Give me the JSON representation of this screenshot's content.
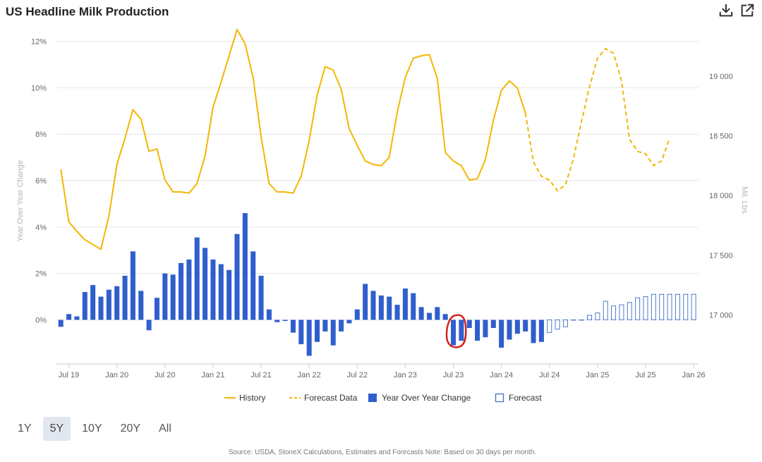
{
  "header": {
    "title": "US Headline Milk Production",
    "download_icon": "download-icon",
    "external_icon": "external-link-icon"
  },
  "range_selector": {
    "options": [
      "1Y",
      "5Y",
      "10Y",
      "20Y",
      "All"
    ],
    "active": "5Y"
  },
  "source_note": "Source: USDA, StoneX Calculations, Estimates and Forecasts  Note: Based on 30 days per month.",
  "chart_data": {
    "type": "line+bar",
    "left_axis": {
      "label": "Year Over Year Change",
      "range": [
        -1.9,
        12.2
      ],
      "ticks": [
        0,
        2,
        4,
        6,
        8,
        10,
        12
      ],
      "tick_labels": [
        "0%",
        "2%",
        "4%",
        "6%",
        "8%",
        "10%",
        "12%"
      ]
    },
    "right_axis": {
      "label": "Mil. Lbs.",
      "range": [
        16590,
        19330
      ],
      "ticks": [
        17000,
        17500,
        18000,
        18500,
        19000
      ],
      "tick_labels": [
        "17 000",
        "17 500",
        "18 000",
        "18 500",
        "19 000"
      ]
    },
    "x_axis": {
      "start": "2019-06",
      "tick_months": [
        "2019-07",
        "2020-01",
        "2020-07",
        "2021-01",
        "2021-07",
        "2022-01",
        "2022-07",
        "2023-01",
        "2023-07",
        "2024-01",
        "2024-07",
        "2025-01",
        "2025-07",
        "2026-01"
      ],
      "tick_labels": [
        "Jul 19",
        "Jan 20",
        "Jul 20",
        "Jan 21",
        "Jul 21",
        "Jan 22",
        "Jul 22",
        "Jan 23",
        "Jul 23",
        "Jan 24",
        "Jul 24",
        "Jan 25",
        "Jul 25",
        "Jan 26"
      ]
    },
    "grid": true,
    "legend": {
      "placement": "bottom-center",
      "items": [
        {
          "name": "History",
          "symbol": "line",
          "color": "#f2b705"
        },
        {
          "name": "Forecast Data",
          "symbol": "dashed-line",
          "color": "#f2b705"
        },
        {
          "name": "Year Over Year Change",
          "symbol": "filled-box",
          "color": "#2f5fcc"
        },
        {
          "name": "Forecast",
          "symbol": "open-box",
          "color": "#4f79c7"
        }
      ]
    },
    "history_mil_lbs": [
      18220,
      17780,
      17700,
      17630,
      17590,
      17550,
      17830,
      18260,
      18480,
      18720,
      18640,
      18370,
      18390,
      18130,
      18030,
      18030,
      18020,
      18100,
      18330,
      18740,
      18950,
      19170,
      19390,
      19270,
      18990,
      18490,
      18100,
      18030,
      18030,
      18020,
      18160,
      18460,
      18840,
      19080,
      19050,
      18890,
      18560,
      18420,
      18290,
      18260,
      18250,
      18320,
      18700,
      18990,
      19150,
      19170,
      19180,
      18980,
      18360,
      18290,
      18250,
      18130,
      18140,
      18300,
      18630,
      18880,
      18960,
      18900,
      18690
    ],
    "forecast_mil_lbs": [
      18690,
      18280,
      18160,
      18130,
      18040,
      18090,
      18310,
      18620,
      18910,
      19150,
      19230,
      19190,
      18960,
      18470,
      18370,
      18350,
      18250,
      18290,
      18480
    ],
    "yoy_change_pct": [
      -0.3,
      0.25,
      0.15,
      1.2,
      1.5,
      1.0,
      1.3,
      1.45,
      1.9,
      2.95,
      1.25,
      -0.45,
      0.95,
      2.0,
      1.95,
      2.45,
      2.6,
      3.55,
      3.1,
      2.6,
      2.4,
      2.15,
      3.7,
      4.6,
      2.95,
      1.9,
      0.45,
      -0.1,
      -0.05,
      -0.55,
      -1.05,
      -1.55,
      -0.95,
      -0.5,
      -1.1,
      -0.5,
      -0.15,
      0.45,
      1.55,
      1.25,
      1.05,
      1.0,
      0.65,
      1.35,
      1.15,
      0.55,
      0.3,
      0.55,
      0.25,
      -1.1,
      -0.9,
      -0.35,
      -0.9,
      -0.75,
      -0.35,
      -1.2,
      -0.85,
      -0.6,
      -0.5,
      -1.0,
      -0.95
    ],
    "forecast_yoy_pct": [
      -0.55,
      -0.4,
      -0.3,
      0.0,
      0.0,
      0.2,
      0.3,
      0.8,
      0.6,
      0.65,
      0.75,
      0.95,
      1.0,
      1.1,
      1.1,
      1.1,
      1.1,
      1.1,
      1.1
    ]
  }
}
